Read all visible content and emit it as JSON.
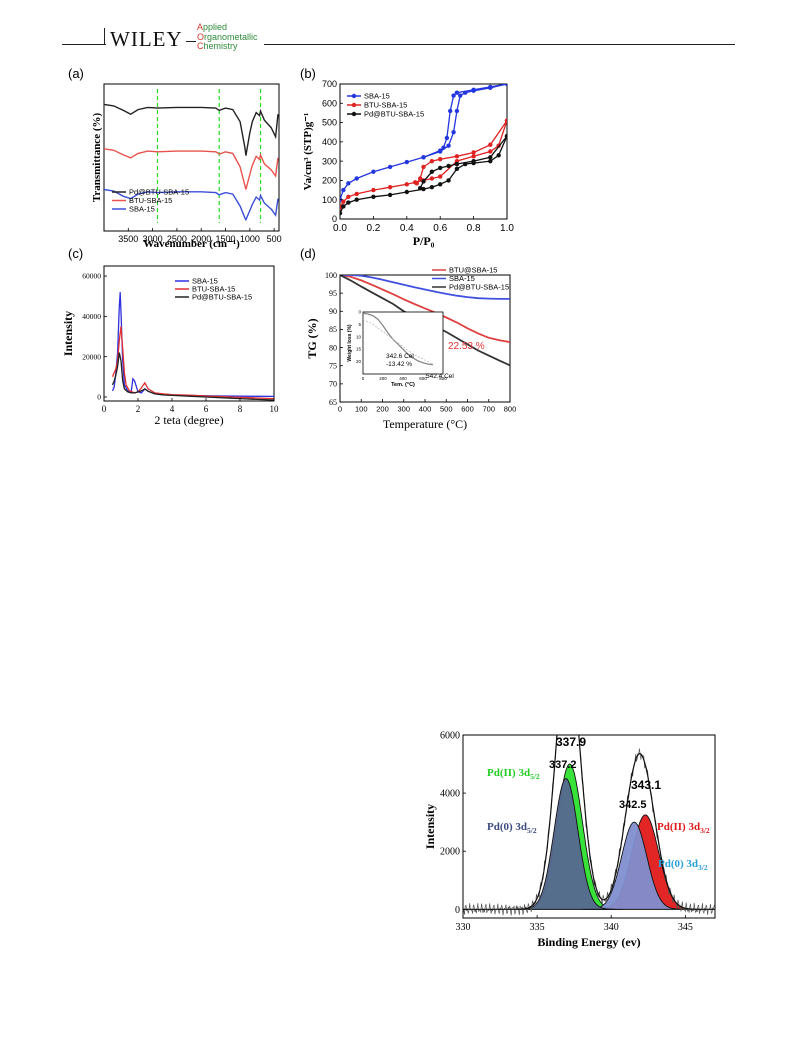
{
  "header": {
    "logo_text": "WILEY",
    "journal_lines": [
      {
        "cap": "A",
        "rest": "pplied"
      },
      {
        "cap": "O",
        "rest": "rganometallic"
      },
      {
        "cap": "C",
        "rest": "hemistry"
      }
    ]
  },
  "chart_data": [
    {
      "id": "a",
      "panel_label": "(a)",
      "type": "line",
      "xlabel": "Wavenumber (cm⁻¹)",
      "ylabel": "Transmittance (%)",
      "xlim": [
        4000,
        400
      ],
      "x_ticks": [
        3500,
        3000,
        2500,
        2000,
        1500,
        1000,
        500
      ],
      "reference_lines_x": [
        2900,
        1630,
        780
      ],
      "legend": [
        "Pd@BTU-SBA-15",
        "BTU-SBA-15",
        "SBA-15"
      ],
      "legend_position": "bottom-left",
      "series": [
        {
          "name": "Pd@BTU-SBA-15",
          "color": "#222222",
          "x": [
            4000,
            3800,
            3600,
            3450,
            3300,
            3100,
            2900,
            2500,
            2000,
            1700,
            1630,
            1500,
            1350,
            1200,
            1100,
            1080,
            1000,
            950,
            870,
            800,
            780,
            700,
            560,
            470,
            420
          ],
          "y": [
            93,
            91,
            85,
            80,
            86,
            89,
            88,
            89,
            89,
            88,
            85,
            88,
            86,
            70,
            35,
            25,
            55,
            70,
            82,
            78,
            84,
            72,
            62,
            50,
            80
          ]
        },
        {
          "name": "BTU-SBA-15",
          "color": "#e8534d",
          "x": [
            4000,
            3800,
            3600,
            3450,
            3300,
            3100,
            2900,
            2500,
            2000,
            1700,
            1630,
            1500,
            1350,
            1200,
            1100,
            1080,
            1000,
            950,
            870,
            800,
            780,
            700,
            560,
            470,
            420
          ],
          "y": [
            64,
            62,
            56,
            52,
            58,
            61,
            60,
            61,
            61,
            60,
            57,
            60,
            58,
            40,
            15,
            10,
            30,
            42,
            54,
            50,
            56,
            44,
            36,
            28,
            52
          ]
        },
        {
          "name": "SBA-15",
          "color": "#3b4fd8",
          "x": [
            4000,
            3800,
            3600,
            3450,
            3300,
            3100,
            2900,
            2500,
            2000,
            1700,
            1630,
            1500,
            1350,
            1200,
            1100,
            1080,
            1000,
            950,
            870,
            800,
            780,
            700,
            560,
            470,
            420
          ],
          "y": [
            40,
            38,
            31,
            28,
            34,
            37,
            36,
            37,
            37,
            36,
            33,
            36,
            34,
            18,
            2,
            0,
            12,
            20,
            30,
            26,
            32,
            22,
            14,
            6,
            28
          ]
        }
      ]
    },
    {
      "id": "b",
      "panel_label": "(b)",
      "type": "line",
      "xlabel": "P/P₀",
      "ylabel": "Va/cm³ (STP)g⁻¹",
      "xlim": [
        0,
        1.0
      ],
      "ylim": [
        0,
        700
      ],
      "x_ticks": [
        0.0,
        0.2,
        0.4,
        0.6,
        0.8,
        1.0
      ],
      "y_ticks": [
        0,
        100,
        200,
        300,
        400,
        500,
        600,
        700
      ],
      "legend": [
        "SBA-15",
        "BTU-SBA-15",
        "Pd@BTU-SBA-15"
      ],
      "legend_position": "top-left",
      "series": [
        {
          "name": "SBA-15",
          "color": "#2436e0",
          "adsorption": {
            "x": [
              0.0,
              0.02,
              0.05,
              0.1,
              0.2,
              0.3,
              0.4,
              0.5,
              0.6,
              0.65,
              0.68,
              0.7,
              0.72,
              0.75,
              0.8,
              0.9,
              1.0
            ],
            "y": [
              100,
              150,
              185,
              210,
              245,
              270,
              295,
              320,
              350,
              380,
              450,
              560,
              640,
              655,
              665,
              680,
              700
            ]
          },
          "desorption": {
            "x": [
              1.0,
              0.9,
              0.8,
              0.7,
              0.68,
              0.66,
              0.64,
              0.62,
              0.6,
              0.5
            ],
            "y": [
              700,
              685,
              670,
              655,
              640,
              560,
              420,
              370,
              355,
              320
            ]
          }
        },
        {
          "name": "BTU-SBA-15",
          "color": "#e02222",
          "adsorption": {
            "x": [
              0.0,
              0.02,
              0.05,
              0.1,
              0.2,
              0.3,
              0.4,
              0.45,
              0.5,
              0.55,
              0.6,
              0.7,
              0.8,
              0.9,
              0.95,
              1.0
            ],
            "y": [
              60,
              90,
              115,
              130,
              150,
              165,
              180,
              190,
              200,
              210,
              220,
              300,
              325,
              350,
              380,
              510
            ]
          },
          "desorption": {
            "x": [
              1.0,
              0.9,
              0.8,
              0.7,
              0.6,
              0.55,
              0.5,
              0.48,
              0.46
            ],
            "y": [
              510,
              385,
              345,
              325,
              310,
              300,
              270,
              210,
              185
            ]
          }
        },
        {
          "name": "Pd@BTU-SBA-15",
          "color": "#111111",
          "adsorption": {
            "x": [
              0.0,
              0.02,
              0.05,
              0.1,
              0.2,
              0.3,
              0.4,
              0.5,
              0.55,
              0.6,
              0.65,
              0.7,
              0.75,
              0.8,
              0.9,
              0.95,
              1.0
            ],
            "y": [
              30,
              65,
              85,
              100,
              115,
              125,
              140,
              155,
              165,
              180,
              200,
              260,
              285,
              290,
              300,
              330,
              430
            ]
          },
          "desorption": {
            "x": [
              1.0,
              0.9,
              0.8,
              0.7,
              0.65,
              0.6,
              0.55,
              0.5,
              0.48
            ],
            "y": [
              430,
              320,
              300,
              285,
              275,
              265,
              245,
              195,
              160
            ]
          }
        }
      ]
    },
    {
      "id": "c",
      "panel_label": "(c)",
      "type": "line",
      "xlabel": "2 teta (degree)",
      "ylabel": "Intensity",
      "xlim": [
        0,
        10
      ],
      "ylim": [
        -2000,
        65000
      ],
      "x_ticks": [
        0,
        2,
        4,
        6,
        8,
        10
      ],
      "y_ticks": [
        0,
        20000,
        40000,
        60000
      ],
      "legend": [
        "SBA-15",
        "BTU-SBA-15",
        "Pd@BTU-SBA-15"
      ],
      "legend_position": "top-right",
      "series": [
        {
          "name": "SBA-15",
          "color": "#3030e0",
          "x": [
            0.5,
            0.6,
            0.7,
            0.8,
            0.9,
            0.95,
            1.0,
            1.1,
            1.2,
            1.4,
            1.6,
            1.7,
            1.8,
            2.0,
            2.2,
            2.4,
            2.6,
            3.0,
            3.5,
            4,
            5,
            6,
            7,
            8,
            9,
            10
          ],
          "y": [
            3000,
            5000,
            12000,
            22000,
            45000,
            52000,
            42000,
            18000,
            6000,
            3000,
            2500,
            9000,
            8000,
            2500,
            2000,
            4000,
            2800,
            1500,
            1200,
            1000,
            800,
            600,
            500,
            400,
            350,
            300
          ]
        },
        {
          "name": "BTU-SBA-15",
          "color": "#e03030",
          "x": [
            0.5,
            0.6,
            0.7,
            0.8,
            0.9,
            1.0,
            1.1,
            1.2,
            1.3,
            1.5,
            1.8,
            2.0,
            2.2,
            2.4,
            2.6,
            3.0,
            3.5,
            4,
            5,
            6,
            7,
            8,
            9,
            10
          ],
          "y": [
            10000,
            12000,
            14000,
            18000,
            28000,
            35000,
            24000,
            12000,
            6000,
            3000,
            2000,
            2500,
            4500,
            7000,
            4000,
            2000,
            1500,
            1200,
            900,
            500,
            200,
            -200,
            -500,
            -800
          ]
        },
        {
          "name": "Pd@BTU-SBA-15",
          "color": "#222222",
          "x": [
            0.5,
            0.6,
            0.7,
            0.8,
            0.9,
            1.0,
            1.1,
            1.2,
            1.4,
            1.6,
            1.8,
            2.0,
            2.2,
            2.4,
            2.6,
            3.0,
            3.5,
            4,
            5,
            6,
            7,
            8,
            9,
            10
          ],
          "y": [
            6000,
            8000,
            11000,
            15000,
            22000,
            18000,
            8000,
            4000,
            2500,
            2000,
            2000,
            2500,
            3000,
            4000,
            2800,
            1500,
            1000,
            800,
            400,
            0,
            -400,
            -800,
            -1200,
            -1500
          ]
        }
      ]
    },
    {
      "id": "d",
      "panel_label": "(d)",
      "type": "line",
      "xlabel": "Temperature (°C)",
      "ylabel": "TG (%)",
      "xlim": [
        0,
        800
      ],
      "ylim": [
        65,
        100
      ],
      "x_ticks": [
        0,
        100,
        200,
        300,
        400,
        500,
        600,
        700,
        800
      ],
      "y_ticks": [
        65,
        70,
        75,
        80,
        85,
        90,
        95,
        100
      ],
      "legend": [
        "BTU@SBA-15",
        "SBA-15",
        "Pd@BTU-SBA-15"
      ],
      "legend_position": "top-right",
      "annotation": "22.53 %",
      "series": [
        {
          "name": "BTU@SBA-15",
          "color": "#e04040",
          "x": [
            0,
            50,
            100,
            150,
            200,
            250,
            300,
            350,
            400,
            450,
            500,
            550,
            600,
            650,
            700,
            750,
            800
          ],
          "y": [
            100,
            99.5,
            98.5,
            97.3,
            96,
            94.7,
            93.3,
            92,
            90.8,
            89.6,
            88.3,
            86.9,
            85.3,
            83.9,
            82.7,
            82,
            81.5
          ]
        },
        {
          "name": "SBA-15",
          "color": "#4050e0",
          "x": [
            0,
            50,
            100,
            150,
            200,
            250,
            300,
            350,
            400,
            450,
            500,
            550,
            600,
            650,
            700,
            750,
            800
          ],
          "y": [
            100,
            100,
            99.8,
            99.3,
            98.7,
            98,
            97.3,
            96.6,
            96,
            95.4,
            94.8,
            94.3,
            93.9,
            93.6,
            93.5,
            93.4,
            93.4
          ]
        },
        {
          "name": "Pd@BTU-SBA-15",
          "color": "#333333",
          "x": [
            0,
            50,
            100,
            150,
            200,
            250,
            300,
            350,
            400,
            450,
            500,
            550,
            600,
            650,
            700,
            750,
            800
          ],
          "y": [
            100,
            98.5,
            96.8,
            95.2,
            93.6,
            92,
            90,
            88.5,
            87.2,
            85.8,
            84.3,
            82.6,
            80.9,
            79.2,
            77.8,
            76.4,
            75.1
          ]
        }
      ],
      "inset": {
        "xlabel": "Tem. (°C)",
        "ylabel": "Weight loss (%)",
        "xlim": [
          0,
          800
        ],
        "ylim": [
          0,
          25
        ],
        "x_ticks": [
          0,
          200,
          400,
          600,
          800
        ],
        "y_ticks": [
          0,
          5,
          10,
          15,
          20
        ],
        "annotations": [
          "342.6 Cel",
          "-13.42 %",
          "542.4 Cel"
        ],
        "series": [
          {
            "name": "weight-loss",
            "color": "#888888",
            "x": [
              0,
              50,
              100,
              150,
              200,
              250,
              300,
              350,
              400,
              450,
              500,
              550,
              600,
              650,
              700
            ],
            "y": [
              0.5,
              0.8,
              1.5,
              3,
              5.5,
              8.5,
              11,
              13,
              15,
              17,
              18.5,
              19.7,
              20.5,
              21,
              21.2
            ]
          },
          {
            "name": "derivative",
            "color": "#bbbbbb",
            "x": [
              0,
              100,
              200,
              300,
              400,
              500,
              600,
              700
            ],
            "y": [
              3,
              5,
              8,
              11,
              14,
              17,
              19,
              21
            ]
          }
        ]
      }
    },
    {
      "id": "xps",
      "type": "area",
      "xlabel": "Binding Energy (ev)",
      "ylabel": "Intensity",
      "xlim": [
        330,
        347
      ],
      "ylim": [
        -300,
        6000
      ],
      "x_ticks": [
        330,
        335,
        340,
        345
      ],
      "y_ticks": [
        0,
        2000,
        4000,
        6000
      ],
      "peaks": [
        {
          "label": "Pd(II) 3d5/2",
          "label_main": "Pd(II) 3d",
          "label_sub": "5/2",
          "center": 337.2,
          "height": 5000,
          "sigma": 0.85,
          "color": "#2ee02e",
          "label_color": "#22cc22"
        },
        {
          "label": "Pd(0) 3d5/2",
          "label_main": "Pd(0) 3d",
          "label_sub": "5/2",
          "center": 336.95,
          "height": 4500,
          "sigma": 0.8,
          "color": "#56678f",
          "label_color": "#3b4a80"
        },
        {
          "label": "Pd(II) 3d3/2",
          "label_main": "Pd(II) 3d",
          "label_sub": "3/2",
          "center": 342.3,
          "height": 3250,
          "sigma": 0.9,
          "color": "#e01a1a",
          "label_color": "#e01a1a"
        },
        {
          "label": "Pd(0) 3d3/2",
          "label_main": "Pd(0) 3d",
          "label_sub": "3/2",
          "center": 341.55,
          "height": 3000,
          "sigma": 0.85,
          "color": "#7f8fd0",
          "label_color": "#2a9fd8"
        }
      ],
      "peak_values": [
        "337.9",
        "337.2",
        "343.1",
        "342.5"
      ]
    }
  ]
}
